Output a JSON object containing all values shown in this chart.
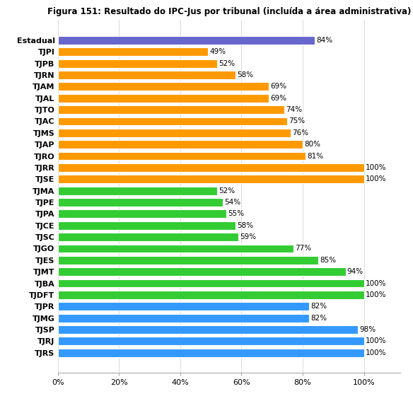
{
  "title": "Figura 151: Resultado do IPC-Jus por tribunal (incluída a área administrativa)",
  "categories": [
    "Estadual",
    "TJPI",
    "TJPB",
    "TJRN",
    "TJAM",
    "TJAL",
    "TJTO",
    "TJAC",
    "TJMS",
    "TJAP",
    "TJRO",
    "TJRR",
    "TJSE",
    "TJMA",
    "TJPE",
    "TJPA",
    "TJCE",
    "TJSC",
    "TJGO",
    "TJES",
    "TJMT",
    "TJBA",
    "TJDFT",
    "TJPR",
    "TJMG",
    "TJSP",
    "TJRJ",
    "TJRS"
  ],
  "values": [
    84,
    49,
    52,
    58,
    69,
    69,
    74,
    75,
    76,
    80,
    81,
    100,
    100,
    52,
    54,
    55,
    58,
    59,
    77,
    85,
    94,
    100,
    100,
    82,
    82,
    98,
    100,
    100
  ],
  "colors": [
    "#6666cc",
    "#ff9900",
    "#ff9900",
    "#ff9900",
    "#ff9900",
    "#ff9900",
    "#ff9900",
    "#ff9900",
    "#ff9900",
    "#ff9900",
    "#ff9900",
    "#ff9900",
    "#ff9900",
    "#33cc33",
    "#33cc33",
    "#33cc33",
    "#33cc33",
    "#33cc33",
    "#33cc33",
    "#33cc33",
    "#33cc33",
    "#33cc33",
    "#33cc33",
    "#3399ff",
    "#3399ff",
    "#3399ff",
    "#3399ff",
    "#3399ff"
  ],
  "xlabel_ticks": [
    "0%",
    "20%",
    "40%",
    "60%",
    "80%",
    "100%"
  ],
  "xlabel_values": [
    0,
    20,
    40,
    60,
    80,
    100
  ],
  "background_color": "#ffffff"
}
